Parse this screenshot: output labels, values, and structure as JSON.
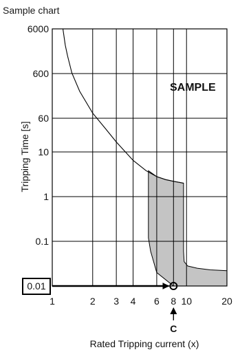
{
  "page_title": "Sample chart",
  "chart_data": {
    "type": "line",
    "title": "Sample chart",
    "xlabel": "Rated Tripping current (x)",
    "ylabel": "Tripping Time [s]",
    "x_scale": "log",
    "y_scale": "log",
    "xlim": [
      1,
      20
    ],
    "ylim": [
      0.01,
      6000
    ],
    "x_ticks": [
      1,
      2,
      3,
      4,
      6,
      8,
      10,
      20
    ],
    "x_tick_labels": [
      "1",
      "2",
      "3",
      "4",
      "6",
      "8",
      "10",
      "20"
    ],
    "y_ticks": [
      0.01,
      0.1,
      1,
      10,
      60,
      600,
      6000
    ],
    "y_tick_labels": [
      "0.01",
      "0.1",
      "1",
      "10",
      "60",
      "600",
      "6000"
    ],
    "grid": true,
    "watermark": "SAMPLE",
    "series": [
      {
        "kind": "curve",
        "x": [
          1.2,
          1.25,
          1.3,
          1.4,
          1.6,
          2.0,
          2.5,
          3.0,
          4.0,
          5.0,
          6.0,
          7.0,
          8.0,
          9.5
        ],
        "y": [
          6000,
          2600,
          1500,
          620,
          240,
          78,
          34,
          17,
          6.5,
          3.8,
          2.8,
          2.4,
          2.2,
          2.0
        ]
      },
      {
        "kind": "shaded_band",
        "upper": {
          "x": [
            5.2,
            6.0,
            7.0,
            8.0,
            9.5
          ],
          "y": [
            3.8,
            2.8,
            2.4,
            2.2,
            2.0
          ]
        },
        "right": {
          "x": [
            9.5,
            9.5,
            9.6,
            10.2,
            12,
            15,
            20
          ],
          "y": [
            2.0,
            0.06,
            0.035,
            0.028,
            0.025,
            0.023,
            0.022
          ]
        },
        "bottom_y": 0.01,
        "left": {
          "x": [
            8.0,
            6.0,
            5.4,
            5.2,
            5.2
          ],
          "y": [
            0.01,
            0.02,
            0.06,
            0.12,
            3.8
          ]
        },
        "fill": "#c4c4c4"
      }
    ],
    "annotations": [
      {
        "type": "boxed_label",
        "text": "0.01",
        "at_y": 0.01
      },
      {
        "type": "arrow",
        "from_x": 1,
        "to_x": 8,
        "y": 0.01
      },
      {
        "type": "circle_marker",
        "x": 8,
        "y": 0.01
      },
      {
        "type": "vertical_arrow",
        "x": 8,
        "label": "C"
      }
    ]
  }
}
